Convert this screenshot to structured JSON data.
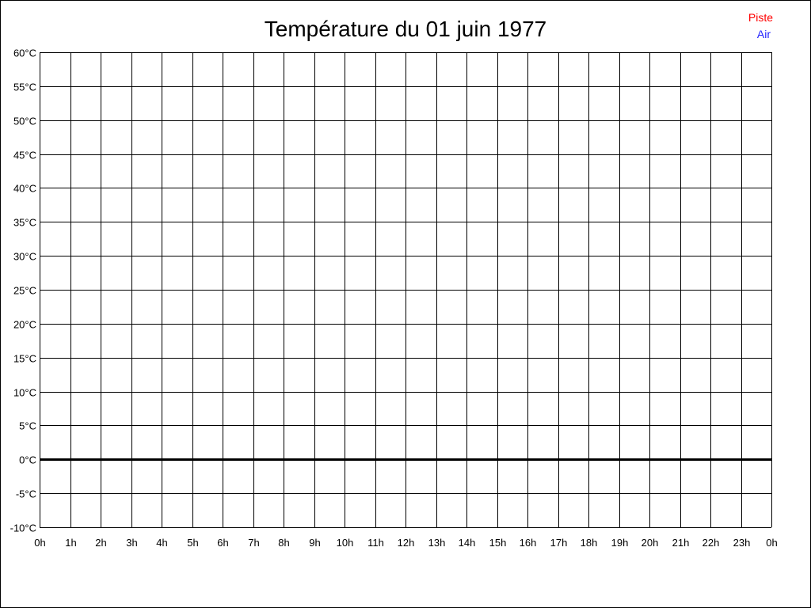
{
  "chart_data": {
    "type": "line",
    "title": "Température du 01 juin 1977",
    "xlabel": "",
    "ylabel": "",
    "x_ticks": [
      "0h",
      "1h",
      "2h",
      "3h",
      "4h",
      "5h",
      "6h",
      "7h",
      "8h",
      "9h",
      "10h",
      "11h",
      "12h",
      "13h",
      "14h",
      "15h",
      "16h",
      "17h",
      "18h",
      "19h",
      "20h",
      "21h",
      "22h",
      "23h",
      "0h"
    ],
    "y_ticks": [
      "60°C",
      "55°C",
      "50°C",
      "45°C",
      "40°C",
      "35°C",
      "30°C",
      "25°C",
      "20°C",
      "15°C",
      "10°C",
      "5°C",
      "0°C",
      "-5°C",
      "-10°C"
    ],
    "xlim": [
      0,
      24
    ],
    "ylim": [
      -10,
      60
    ],
    "grid": true,
    "legend_placement": "top-right",
    "series": [
      {
        "name": "Piste",
        "color": "#ff0000",
        "values": []
      },
      {
        "name": "Air",
        "color": "#0000ff",
        "values": []
      }
    ]
  }
}
